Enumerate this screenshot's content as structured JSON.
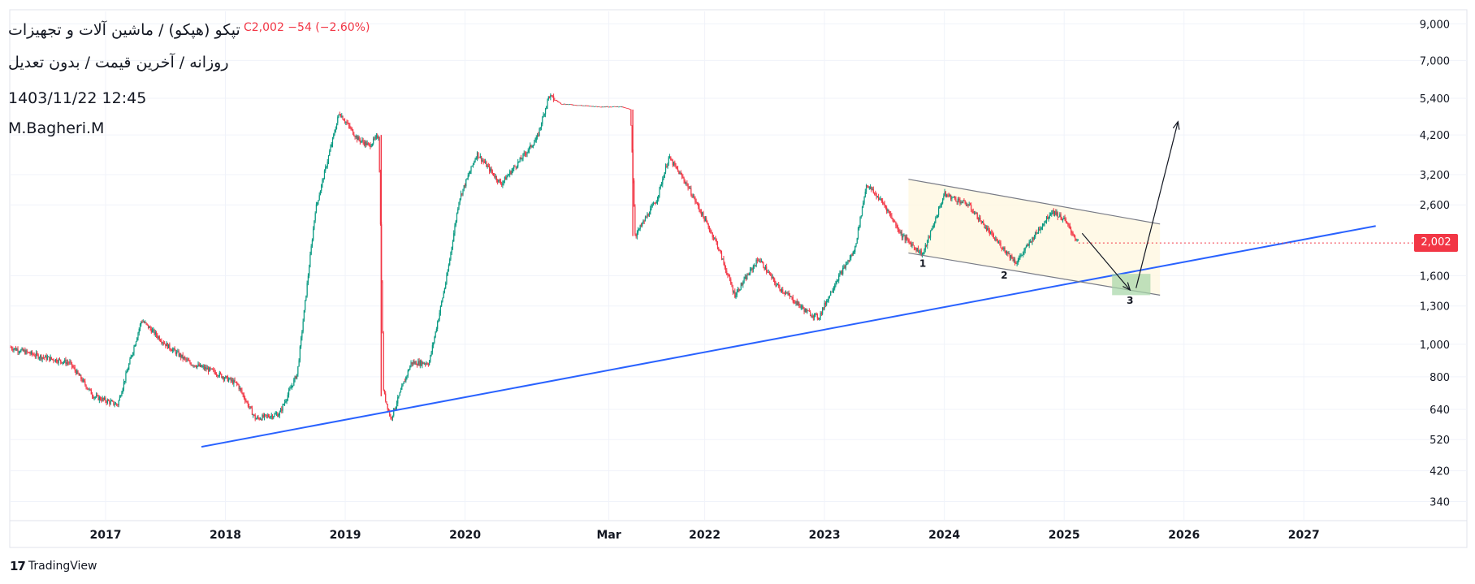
{
  "header": {
    "title": "تپکو (هپکو) / ماشین آلات و تجهیزات",
    "subtitle": "روزانه / آخرین قیمت / بدون تعدیل",
    "datetime": "1403/11/22 12:45",
    "author": "M.Bagheri.M",
    "ohlc_text": "C2,002  −54 (−2.60%)"
  },
  "last_price_label": "2,002",
  "brand": {
    "name": "TradingView",
    "logo": "17"
  },
  "colors": {
    "up": "#089981",
    "down": "#f23645",
    "trendline": "#2962ff",
    "channel": "#787b86",
    "target_box": "#a5d6a7"
  },
  "chart_data": {
    "type": "candlestick",
    "y_scale": "log",
    "ylim": [
      300,
      9800
    ],
    "xlim": [
      2016.2,
      2027.9
    ],
    "y_ticks": [
      {
        "value": 9000,
        "label": "9,000"
      },
      {
        "value": 7000,
        "label": "7,000"
      },
      {
        "value": 5400,
        "label": "5,400"
      },
      {
        "value": 4200,
        "label": "4,200"
      },
      {
        "value": 3200,
        "label": "3,200"
      },
      {
        "value": 2600,
        "label": "2,600"
      },
      {
        "value": 1600,
        "label": "1,600"
      },
      {
        "value": 1300,
        "label": "1,300"
      },
      {
        "value": 1000,
        "label": "1,000"
      },
      {
        "value": 800,
        "label": "800"
      },
      {
        "value": 640,
        "label": "640"
      },
      {
        "value": 520,
        "label": "520"
      },
      {
        "value": 420,
        "label": "420"
      },
      {
        "value": 340,
        "label": "340"
      }
    ],
    "x_ticks": [
      {
        "value": 2017.0,
        "label": "2017"
      },
      {
        "value": 2018.0,
        "label": "2018"
      },
      {
        "value": 2019.0,
        "label": "2019"
      },
      {
        "value": 2020.0,
        "label": "2020"
      },
      {
        "value": 2021.2,
        "label": "Mar"
      },
      {
        "value": 2022.0,
        "label": "2022"
      },
      {
        "value": 2023.0,
        "label": "2023"
      },
      {
        "value": 2024.0,
        "label": "2024"
      },
      {
        "value": 2025.0,
        "label": "2025"
      },
      {
        "value": 2026.0,
        "label": "2026"
      },
      {
        "value": 2027.0,
        "label": "2027"
      }
    ],
    "price_path": [
      [
        2016.2,
        980
      ],
      [
        2016.45,
        920
      ],
      [
        2016.7,
        880
      ],
      [
        2016.9,
        700
      ],
      [
        2017.1,
        660
      ],
      [
        2017.3,
        1180
      ],
      [
        2017.5,
        1000
      ],
      [
        2017.7,
        880
      ],
      [
        2017.9,
        830
      ],
      [
        2018.1,
        760
      ],
      [
        2018.25,
        600
      ],
      [
        2018.45,
        620
      ],
      [
        2018.6,
        820
      ],
      [
        2018.75,
        2500
      ],
      [
        2018.95,
        4900
      ],
      [
        2019.1,
        4100
      ],
      [
        2019.2,
        3900
      ],
      [
        2019.28,
        4200
      ],
      [
        2019.32,
        720
      ],
      [
        2019.38,
        600
      ],
      [
        2019.55,
        880
      ],
      [
        2019.7,
        880
      ],
      [
        2019.85,
        1600
      ],
      [
        2019.95,
        2700
      ],
      [
        2020.1,
        3700
      ],
      [
        2020.3,
        3000
      ],
      [
        2020.45,
        3500
      ],
      [
        2020.6,
        4100
      ],
      [
        2020.7,
        5500
      ],
      [
        2020.8,
        5200
      ],
      [
        2020.95,
        5150
      ],
      [
        2021.1,
        5100
      ],
      [
        2021.3,
        5100
      ],
      [
        2021.38,
        5000
      ],
      [
        2021.42,
        2100
      ],
      [
        2021.6,
        2700
      ],
      [
        2021.7,
        3600
      ],
      [
        2021.85,
        3000
      ],
      [
        2022.1,
        2000
      ],
      [
        2022.25,
        1400
      ],
      [
        2022.45,
        1800
      ],
      [
        2022.6,
        1500
      ],
      [
        2022.85,
        1250
      ],
      [
        2022.95,
        1200
      ],
      [
        2023.1,
        1550
      ],
      [
        2023.25,
        1900
      ],
      [
        2023.35,
        3000
      ],
      [
        2023.5,
        2600
      ],
      [
        2023.65,
        2100
      ],
      [
        2023.82,
        1850
      ],
      [
        2024.0,
        2800
      ],
      [
        2024.2,
        2600
      ],
      [
        2024.4,
        2100
      ],
      [
        2024.6,
        1750
      ],
      [
        2024.75,
        2100
      ],
      [
        2024.9,
        2500
      ],
      [
        2025.0,
        2350
      ],
      [
        2025.12,
        2002
      ]
    ],
    "last_price": 2002,
    "change": -54,
    "change_pct": -2.6,
    "annotations": {
      "trendline": {
        "from": [
          2017.8,
          495
        ],
        "to": [
          2027.6,
          2250
        ]
      },
      "channel_upper": {
        "from": [
          2023.7,
          3100
        ],
        "to": [
          2025.8,
          2280
        ]
      },
      "channel_lower": {
        "from": [
          2023.7,
          1870
        ],
        "to": [
          2025.8,
          1400
        ]
      },
      "channel_fill_color": "#fff8e1",
      "target_box": {
        "x": [
          2025.4,
          2025.72
        ],
        "y": [
          1400,
          1620
        ]
      },
      "arrow_down": {
        "from": [
          2025.15,
          2140
        ],
        "to": [
          2025.55,
          1450
        ]
      },
      "arrow_up": {
        "from": [
          2025.6,
          1470
        ],
        "to": [
          2025.95,
          4600
        ]
      },
      "labels": [
        {
          "text": "1",
          "x": 2023.82,
          "y": 1700
        },
        {
          "text": "2",
          "x": 2024.5,
          "y": 1570
        },
        {
          "text": "3",
          "x": 2025.55,
          "y": 1320
        }
      ]
    }
  }
}
